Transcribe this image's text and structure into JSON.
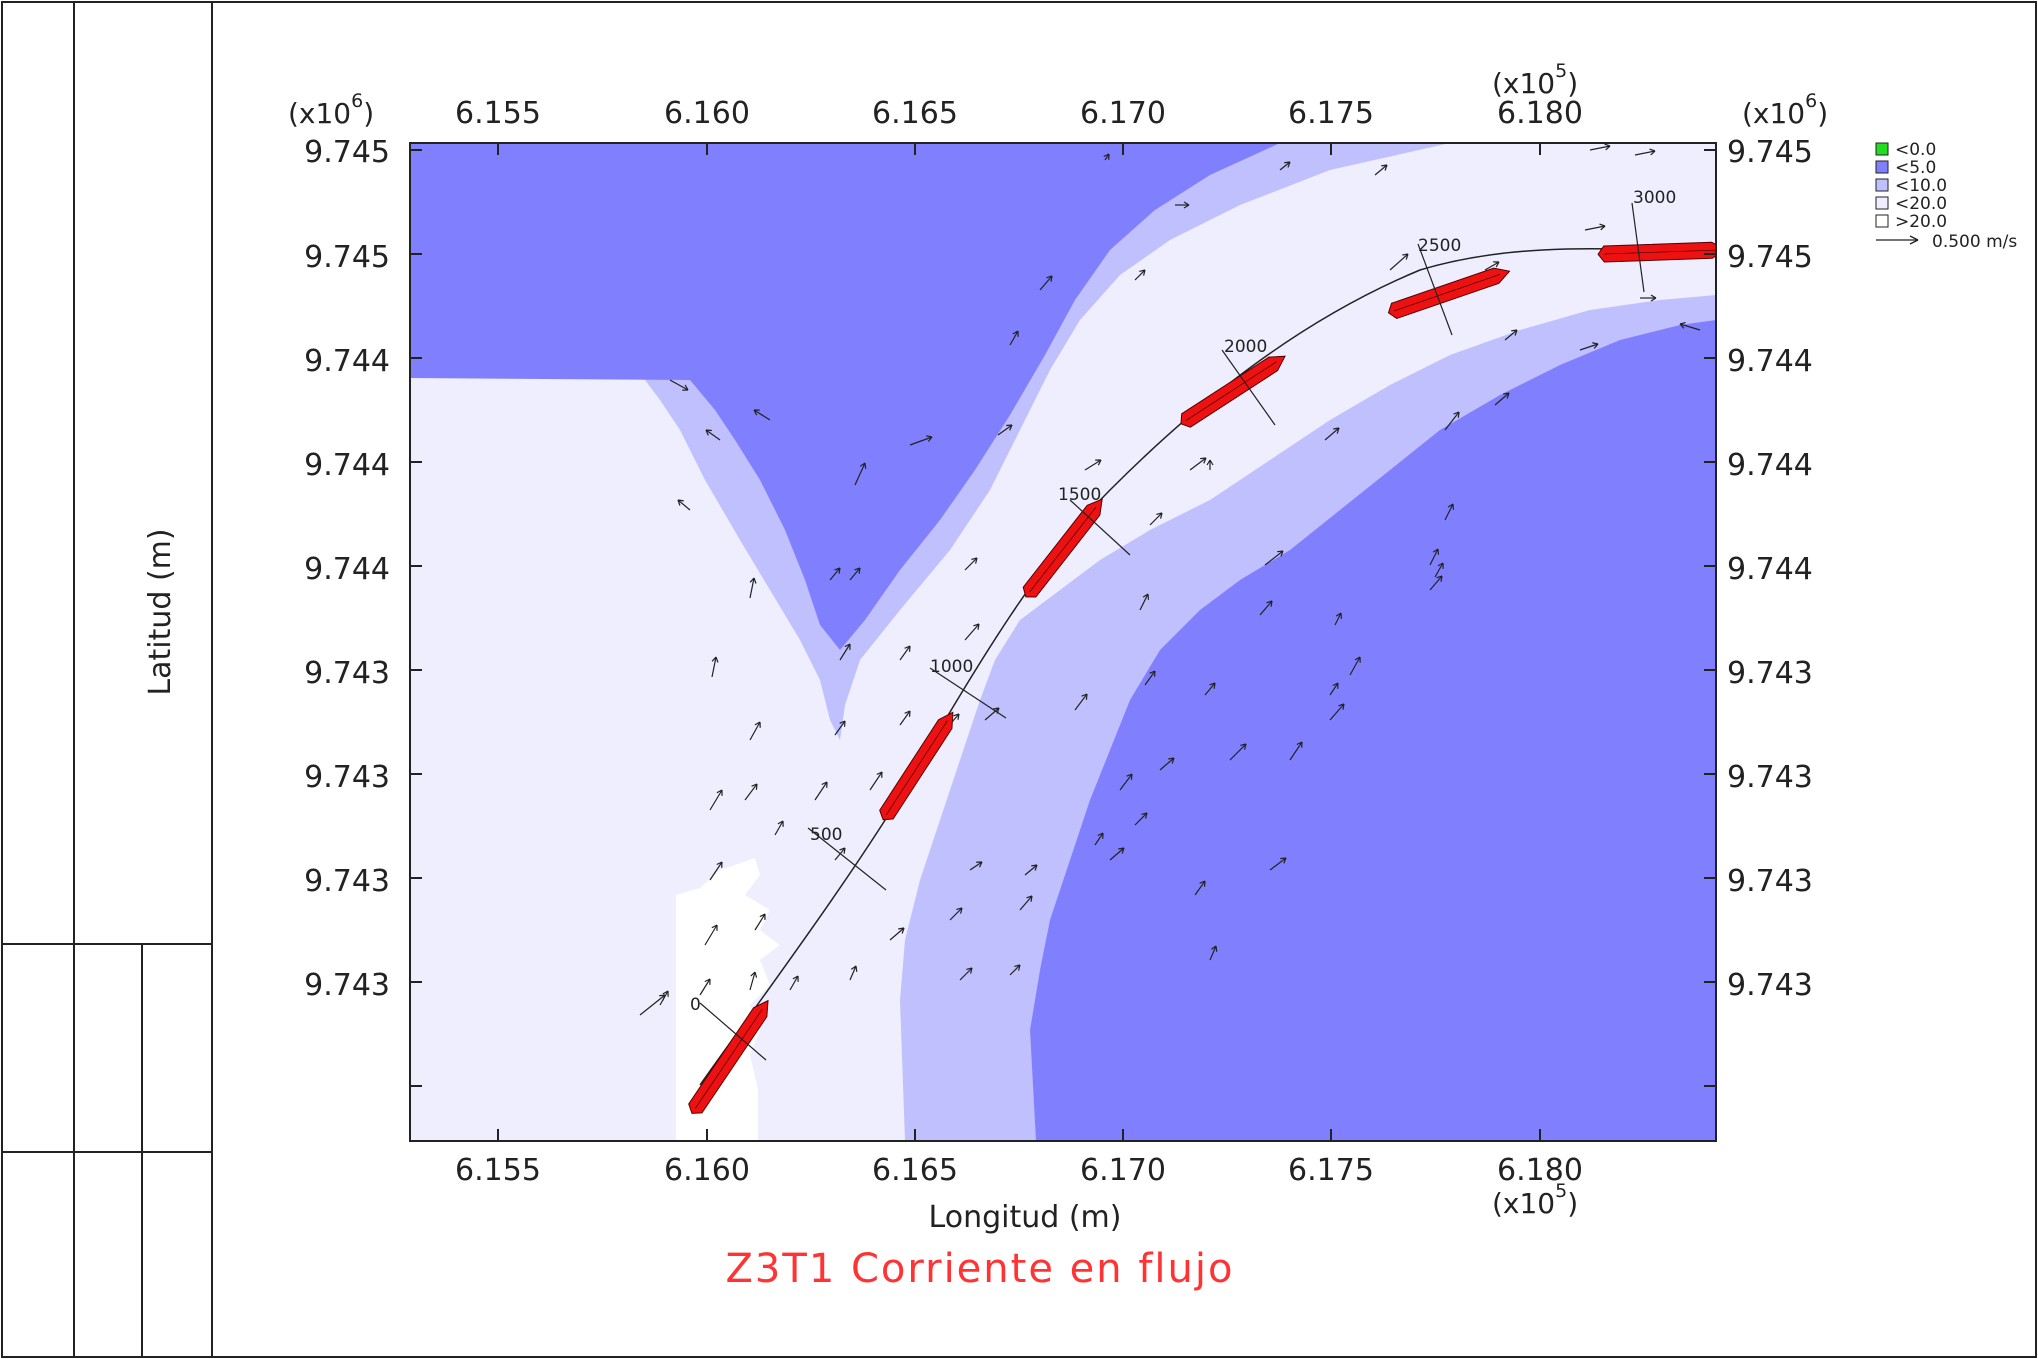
{
  "title": {
    "text": "Z3T1 Corriente en flujo",
    "color": "#ff3333"
  },
  "chart_data": {
    "type": "heatmap",
    "xlabel": "Longitud (m)",
    "ylabel": "Latitud (m)",
    "x_multiplier": "(x10",
    "x_multiplier_exp": "5",
    "y_multiplier": "(x10",
    "y_multiplier_exp": "6",
    "multiplier_close": ")",
    "x_ticks": [
      "6.155",
      "6.160",
      "6.165",
      "6.170",
      "6.175",
      "6.180"
    ],
    "y_ticks": [
      "9.745",
      "9.745",
      "9.744",
      "9.744",
      "9.744",
      "9.743",
      "9.743",
      "9.743",
      "9.743"
    ],
    "legend": {
      "entries": [
        {
          "label": "<0.0",
          "color": "#22dd22"
        },
        {
          "label": "<5.0",
          "color": "#8080ff"
        },
        {
          "label": "<10.0",
          "color": "#c0c0ff"
        },
        {
          "label": "<20.0",
          "color": "#eeeefe"
        },
        {
          "label": ">20.0",
          "color": "#ffffff"
        }
      ],
      "vector_scale": "0.500 m/s"
    },
    "route_labels": [
      "0",
      "500",
      "1000",
      "1500",
      "2000",
      "2500",
      "3000"
    ],
    "colors": {
      "deep": "#8080ff",
      "medium": "#c0c0ff",
      "light": "#eeeefe",
      "blank": "#ffffff",
      "ship": "#ee1111"
    }
  }
}
